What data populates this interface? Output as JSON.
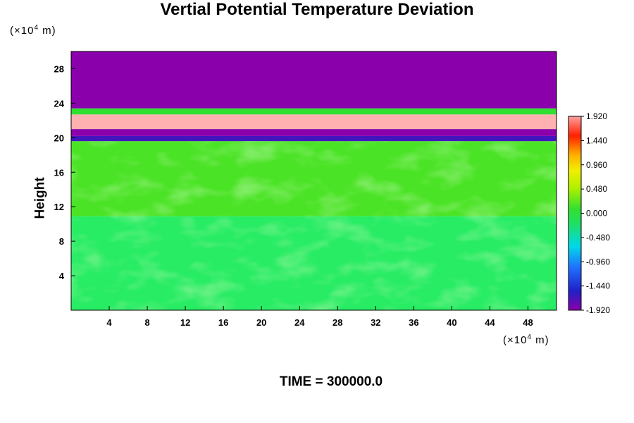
{
  "chart_data": {
    "type": "heatmap",
    "title": "Vertial Potential Temperature Deviation",
    "ylabel": "Height",
    "y_unit_prefix": "(×10",
    "y_unit_exp": "4",
    "y_unit_suffix": " m)",
    "x_unit_prefix": "(×10",
    "x_unit_exp": "4",
    "x_unit_suffix": " m)",
    "xlim": [
      0,
      51
    ],
    "ylim": [
      0,
      30
    ],
    "x_ticks": [
      4,
      8,
      12,
      16,
      20,
      24,
      28,
      32,
      36,
      40,
      44,
      48
    ],
    "y_ticks": [
      4,
      8,
      12,
      16,
      20,
      24,
      28
    ],
    "colorbar": {
      "range": [
        -1.92,
        1.92
      ],
      "tick_labels": [
        "1.920",
        "1.440",
        "0.960",
        "0.480",
        "0.000",
        "-0.480",
        "-0.960",
        "-1.440",
        "-1.920"
      ],
      "tick_values": [
        1.92,
        1.44,
        0.96,
        0.48,
        0.0,
        -0.48,
        -0.96,
        -1.44,
        -1.92
      ]
    },
    "layers": [
      {
        "y_range": [
          0,
          10.9
        ],
        "value": -0.15
      },
      {
        "y_range": [
          10.9,
          19.6
        ],
        "value": 0.1
      },
      {
        "y_range": [
          19.6,
          20.2
        ],
        "value": -1.6
      },
      {
        "y_range": [
          20.2,
          21.0
        ],
        "value": -1.92
      },
      {
        "y_range": [
          21.0,
          22.7
        ],
        "value": 1.92
      },
      {
        "y_range": [
          22.7,
          23.4
        ],
        "value": 0.0
      },
      {
        "y_range": [
          23.4,
          30
        ],
        "value": -1.92
      }
    ],
    "time_label": "TIME = 300000.0"
  }
}
